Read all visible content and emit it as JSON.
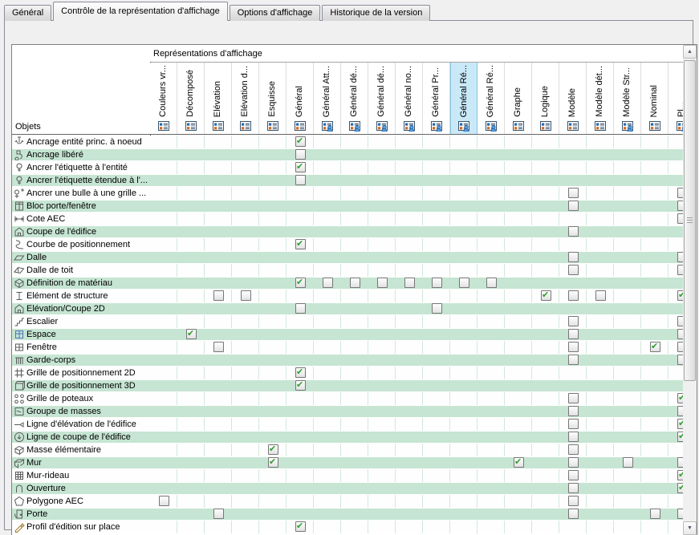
{
  "tabs": [
    {
      "label": "Général",
      "active": false
    },
    {
      "label": "Contrôle de la représentation d'affichage",
      "active": true
    },
    {
      "label": "Options d'affichage",
      "active": false
    },
    {
      "label": "Historique de la version",
      "active": false
    }
  ],
  "header": {
    "representations_label": "Représentations d'affichage",
    "objects_label": "Objets",
    "columns": [
      {
        "label": "Couleurs vr...",
        "icon": "rep-icon",
        "highlighted": false
      },
      {
        "label": "Décomposé",
        "icon": "rep-icon",
        "highlighted": false
      },
      {
        "label": "Elévation",
        "icon": "rep-icon",
        "highlighted": false
      },
      {
        "label": "Elévation d...",
        "icon": "rep-icon",
        "highlighted": false
      },
      {
        "label": "Esquisse",
        "icon": "rep-icon",
        "highlighted": false
      },
      {
        "label": "Général",
        "icon": "rep-icon",
        "highlighted": false
      },
      {
        "label": "Général Att...",
        "icon": "rep-person-icon",
        "highlighted": false
      },
      {
        "label": "Général dé...",
        "icon": "rep-person-icon",
        "highlighted": false
      },
      {
        "label": "Général dé...",
        "icon": "rep-person-icon",
        "highlighted": false
      },
      {
        "label": "Général no...",
        "icon": "rep-person-icon",
        "highlighted": false
      },
      {
        "label": "Général Pr...",
        "icon": "rep-person-icon",
        "highlighted": false
      },
      {
        "label": "Général Ré...",
        "icon": "rep-person-icon",
        "highlighted": true
      },
      {
        "label": "Général Ré...",
        "icon": "rep-person-icon",
        "highlighted": false
      },
      {
        "label": "Graphe",
        "icon": "rep-icon",
        "highlighted": false
      },
      {
        "label": "Logique",
        "icon": "rep-icon",
        "highlighted": false
      },
      {
        "label": "Modèle",
        "icon": "rep-icon",
        "highlighted": false
      },
      {
        "label": "Modèle dét...",
        "icon": "rep-icon",
        "highlighted": false
      },
      {
        "label": "Modèle Str...",
        "icon": "rep-person-icon",
        "highlighted": false
      },
      {
        "label": "Nominal",
        "icon": "rep-icon",
        "highlighted": false
      },
      {
        "label": "Pl...",
        "icon": "rep-person-icon",
        "highlighted": false,
        "partially_visible": true
      }
    ]
  },
  "grid": {
    "rows": [
      {
        "label": "Ancrage entité princ. à noeud",
        "icon": "anchor-node-icon",
        "cells": [
          [
            6,
            "c"
          ]
        ]
      },
      {
        "label": "Ancrage libéré",
        "icon": "anchor-release-icon",
        "cells": [
          [
            6,
            "u"
          ]
        ]
      },
      {
        "label": "Ancrer l'étiquette à l'entité",
        "icon": "anchor-tag-icon",
        "cells": [
          [
            6,
            "c"
          ]
        ]
      },
      {
        "label": "Ancrer l'étiquette étendue à l'...",
        "icon": "anchor-tag-icon",
        "cells": [
          [
            6,
            "u"
          ]
        ]
      },
      {
        "label": "Ancrer une bulle à une grille ...",
        "icon": "anchor-bubble-icon",
        "cells": [
          [
            16,
            "u"
          ],
          [
            20,
            "u"
          ]
        ]
      },
      {
        "label": "Bloc porte/fenêtre",
        "icon": "door-window-block-icon",
        "cells": [
          [
            16,
            "u"
          ],
          [
            20,
            "u"
          ]
        ]
      },
      {
        "label": "Cote AEC",
        "icon": "dimension-icon",
        "cells": [
          [
            20,
            "u"
          ]
        ]
      },
      {
        "label": "Coupe de l'édifice",
        "icon": "building-section-icon",
        "cells": [
          [
            16,
            "u"
          ]
        ]
      },
      {
        "label": "Courbe de positionnement",
        "icon": "layout-curve-icon",
        "cells": [
          [
            6,
            "c"
          ]
        ]
      },
      {
        "label": "Dalle",
        "icon": "slab-icon",
        "cells": [
          [
            16,
            "u"
          ],
          [
            20,
            "u"
          ]
        ]
      },
      {
        "label": "Dalle de toit",
        "icon": "roof-slab-icon",
        "cells": [
          [
            16,
            "u"
          ],
          [
            20,
            "u"
          ]
        ]
      },
      {
        "label": "Définition de matériau",
        "icon": "material-icon",
        "cells": [
          [
            6,
            "c"
          ],
          [
            7,
            "u"
          ],
          [
            8,
            "u"
          ],
          [
            9,
            "u"
          ],
          [
            10,
            "u"
          ],
          [
            11,
            "u"
          ],
          [
            12,
            "u"
          ],
          [
            13,
            "u"
          ]
        ]
      },
      {
        "label": "Elément de structure",
        "icon": "structure-icon",
        "cells": [
          [
            3,
            "u"
          ],
          [
            4,
            "u"
          ],
          [
            15,
            "c"
          ],
          [
            16,
            "u"
          ],
          [
            17,
            "u"
          ],
          [
            20,
            "c"
          ]
        ]
      },
      {
        "label": "Elévation/Coupe 2D",
        "icon": "building-section-icon",
        "cells": [
          [
            6,
            "u"
          ],
          [
            11,
            "u"
          ]
        ]
      },
      {
        "label": "Escalier",
        "icon": "stair-icon",
        "cells": [
          [
            16,
            "u"
          ],
          [
            20,
            "u"
          ]
        ]
      },
      {
        "label": "Espace",
        "icon": "space-icon",
        "cells": [
          [
            2,
            "c"
          ],
          [
            16,
            "u"
          ],
          [
            20,
            "u"
          ]
        ]
      },
      {
        "label": "Fenêtre",
        "icon": "window-icon",
        "cells": [
          [
            3,
            "u"
          ],
          [
            16,
            "u"
          ],
          [
            19,
            "c"
          ],
          [
            20,
            "u"
          ]
        ]
      },
      {
        "label": "Garde-corps",
        "icon": "railing-icon",
        "cells": [
          [
            16,
            "u"
          ],
          [
            20,
            "u"
          ]
        ]
      },
      {
        "label": "Grille de positionnement 2D",
        "icon": "grid2d-icon",
        "cells": [
          [
            6,
            "c"
          ]
        ]
      },
      {
        "label": "Grille de positionnement 3D",
        "icon": "grid3d-icon",
        "cells": [
          [
            6,
            "c"
          ]
        ]
      },
      {
        "label": "Grille de poteaux",
        "icon": "column-grid-icon",
        "cells": [
          [
            16,
            "u"
          ],
          [
            20,
            "c"
          ]
        ]
      },
      {
        "label": "Groupe de masses",
        "icon": "mass-group-icon",
        "cells": [
          [
            16,
            "u"
          ],
          [
            20,
            "u"
          ]
        ]
      },
      {
        "label": "Ligne d'élévation de l'édifice",
        "icon": "elevation-line-icon",
        "cells": [
          [
            16,
            "u"
          ],
          [
            20,
            "c"
          ]
        ]
      },
      {
        "label": "Ligne de coupe de l'édifice",
        "icon": "section-line-icon",
        "cells": [
          [
            16,
            "u"
          ],
          [
            20,
            "c"
          ]
        ]
      },
      {
        "label": "Masse élémentaire",
        "icon": "mass-icon",
        "cells": [
          [
            5,
            "c"
          ],
          [
            16,
            "u"
          ]
        ]
      },
      {
        "label": "Mur",
        "icon": "wall-icon",
        "cells": [
          [
            5,
            "c"
          ],
          [
            14,
            "c"
          ],
          [
            16,
            "u"
          ],
          [
            18,
            "u"
          ],
          [
            20,
            "u"
          ]
        ]
      },
      {
        "label": "Mur-rideau",
        "icon": "curtain-wall-icon",
        "cells": [
          [
            16,
            "u"
          ],
          [
            20,
            "c"
          ]
        ]
      },
      {
        "label": "Ouverture",
        "icon": "opening-icon",
        "cells": [
          [
            16,
            "u"
          ],
          [
            20,
            "c"
          ]
        ]
      },
      {
        "label": "Polygone AEC",
        "icon": "polygon-icon",
        "cells": [
          [
            1,
            "u"
          ],
          [
            16,
            "u"
          ]
        ]
      },
      {
        "label": "Porte",
        "icon": "door-icon",
        "cells": [
          [
            3,
            "u"
          ],
          [
            16,
            "u"
          ],
          [
            19,
            "u"
          ],
          [
            20,
            "u"
          ]
        ]
      },
      {
        "label": "Profil d'édition sur place",
        "icon": "edit-profile-icon",
        "cells": [
          [
            6,
            "c"
          ]
        ]
      }
    ]
  },
  "colors": {
    "row_alt_green": "#c6e5d3",
    "header_highlight": "#c9e9f8",
    "check_green": "#2f9e2f",
    "page_bg": "#f0f0f0"
  },
  "scrollbar_arrows": {
    "up": "▲",
    "down": "▼",
    "left": "◄",
    "right": "►"
  }
}
